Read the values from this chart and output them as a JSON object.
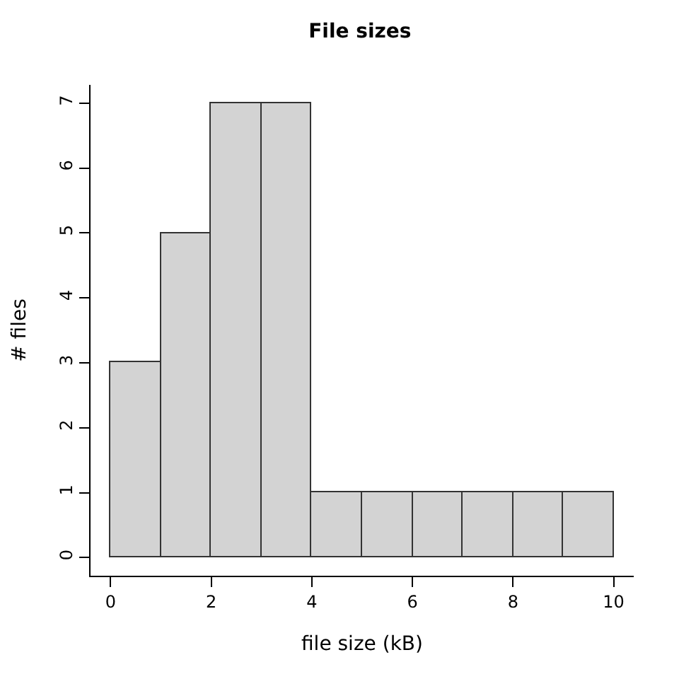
{
  "chart_data": {
    "type": "histogram",
    "title": "File sizes",
    "xlabel": "file size (kB)",
    "ylabel": "# files",
    "bins": [
      0,
      1,
      2,
      3,
      4,
      5,
      6,
      7,
      8,
      9,
      10
    ],
    "values": [
      3,
      5,
      7,
      7,
      1,
      1,
      1,
      1,
      1,
      1
    ],
    "color": "#d3d3d3",
    "xlim": [
      -0.4,
      10.4
    ],
    "xticks": [
      0,
      2,
      4,
      6,
      8,
      10
    ],
    "ylim": [
      -0.28,
      7.28
    ],
    "yticks": [
      0,
      1,
      2,
      3,
      4,
      5,
      6,
      7
    ],
    "grid": false
  }
}
